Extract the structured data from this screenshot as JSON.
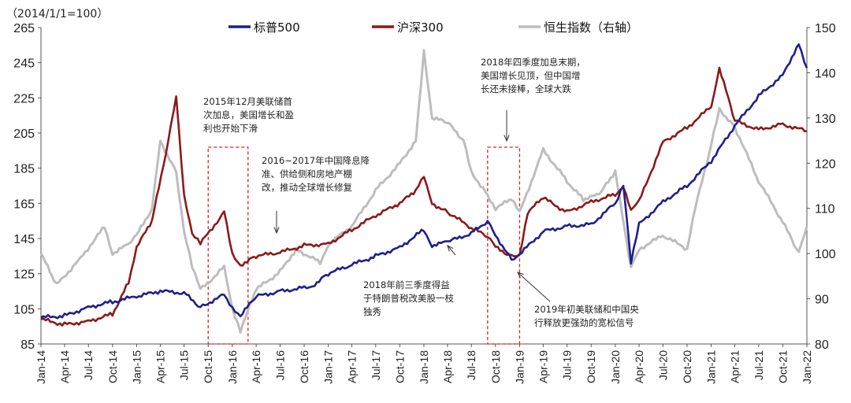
{
  "chart_data": {
    "type": "line",
    "unit_label": "（2014/1/1=100）",
    "ylim": [
      85,
      265
    ],
    "y2lim": [
      80,
      150
    ],
    "yticks": [
      "85",
      "105",
      "125",
      "145",
      "165",
      "185",
      "205",
      "225",
      "245",
      "265"
    ],
    "y2ticks": [
      "80",
      "90",
      "100",
      "110",
      "120",
      "130",
      "140",
      "150"
    ],
    "x_labels": [
      "Jan-14",
      "Apr-14",
      "Jul-14",
      "Oct-14",
      "Jan-15",
      "Apr-15",
      "Jul-15",
      "Oct-15",
      "Jan-16",
      "Apr-16",
      "Jul-16",
      "Oct-16",
      "Jan-17",
      "Apr-17",
      "Jul-17",
      "Oct-17",
      "Jan-18",
      "Apr-18",
      "Jul-18",
      "Oct-18",
      "Jan-19",
      "Apr-19",
      "Jul-19",
      "Oct-19",
      "Jan-20",
      "Apr-20",
      "Jul-20",
      "Oct-20",
      "Jan-21",
      "Apr-21",
      "Jul-21",
      "Oct-21",
      "Jan-22"
    ],
    "series": [
      {
        "name": "标普500",
        "axis": "left",
        "color": "#1f1f8c",
        "x": [
          "2014-01",
          "2014-04",
          "2014-07",
          "2014-10",
          "2015-01",
          "2015-04",
          "2015-07",
          "2015-09",
          "2015-12",
          "2016-01",
          "2016-02",
          "2016-04",
          "2016-07",
          "2016-10",
          "2016-11",
          "2017-01",
          "2017-04",
          "2017-07",
          "2017-10",
          "2018-01",
          "2018-02",
          "2018-04",
          "2018-07",
          "2018-09",
          "2018-10",
          "2018-12",
          "2019-01",
          "2019-04",
          "2019-07",
          "2019-10",
          "2020-01",
          "2020-02",
          "2020-03",
          "2020-04",
          "2020-07",
          "2020-10",
          "2021-01",
          "2021-04",
          "2021-07",
          "2021-10",
          "2021-12",
          "2022-01"
        ],
        "values": [
          100,
          101,
          106,
          109,
          112,
          115,
          114,
          106,
          113,
          106,
          101,
          112,
          115,
          117,
          118,
          125,
          130,
          135,
          140,
          150,
          141,
          143,
          148,
          155,
          147,
          133,
          136,
          149,
          152,
          153,
          165,
          176,
          131,
          153,
          166,
          175,
          189,
          209,
          226,
          238,
          256,
          242
        ]
      },
      {
        "name": "沪深300",
        "axis": "left",
        "color": "#8b1a1a",
        "x": [
          "2014-01",
          "2014-04",
          "2014-07",
          "2014-10",
          "2014-12",
          "2015-01",
          "2015-03",
          "2015-05",
          "2015-06",
          "2015-07",
          "2015-08",
          "2015-09",
          "2015-12",
          "2016-01",
          "2016-02",
          "2016-04",
          "2016-07",
          "2016-10",
          "2017-01",
          "2017-04",
          "2017-07",
          "2017-10",
          "2017-12",
          "2018-01",
          "2018-02",
          "2018-04",
          "2018-07",
          "2018-09",
          "2018-10",
          "2018-12",
          "2019-01",
          "2019-02",
          "2019-04",
          "2019-07",
          "2019-10",
          "2020-01",
          "2020-02",
          "2020-03",
          "2020-04",
          "2020-07",
          "2020-10",
          "2021-01",
          "2021-02",
          "2021-04",
          "2021-07",
          "2021-10",
          "2022-01"
        ],
        "values": [
          99,
          96,
          98,
          102,
          120,
          140,
          155,
          200,
          226,
          170,
          148,
          142,
          160,
          136,
          130,
          135,
          137,
          141,
          142,
          150,
          158,
          165,
          172,
          180,
          165,
          160,
          151,
          146,
          140,
          135,
          136,
          160,
          168,
          160,
          166,
          170,
          175,
          161,
          166,
          200,
          208,
          220,
          242,
          212,
          207,
          210,
          206
        ]
      },
      {
        "name": "恒生指数（右轴）",
        "axis": "right",
        "color": "#bdbdbd",
        "x": [
          "2014-01",
          "2014-03",
          "2014-06",
          "2014-09",
          "2014-10",
          "2014-12",
          "2015-01",
          "2015-03",
          "2015-04",
          "2015-06",
          "2015-07",
          "2015-08",
          "2015-09",
          "2015-12",
          "2016-01",
          "2016-02",
          "2016-04",
          "2016-07",
          "2016-09",
          "2016-12",
          "2017-01",
          "2017-04",
          "2017-07",
          "2017-10",
          "2017-12",
          "2018-01",
          "2018-02",
          "2018-04",
          "2018-06",
          "2018-07",
          "2018-09",
          "2018-10",
          "2018-12",
          "2019-01",
          "2019-04",
          "2019-07",
          "2019-09",
          "2019-11",
          "2020-01",
          "2020-03",
          "2020-04",
          "2020-07",
          "2020-10",
          "2020-11",
          "2021-01",
          "2021-02",
          "2021-04",
          "2021-07",
          "2021-10",
          "2021-12",
          "2022-01"
        ],
        "values": [
          100,
          93,
          99,
          106,
          100,
          102,
          104,
          110,
          125,
          118,
          105,
          97,
          92,
          97,
          88,
          83,
          92,
          96,
          101,
          98,
          102,
          106,
          114,
          120,
          125,
          145,
          130,
          129,
          125,
          118,
          113,
          110,
          112,
          109,
          123,
          116,
          112,
          113,
          118,
          97,
          101,
          104,
          101,
          110,
          124,
          132,
          128,
          116,
          107,
          100,
          106
        ]
      }
    ],
    "annotations": [
      {
        "lines": [
          "2015年12月美联储首",
          "次加息，美国增长和盈",
          "利也开始下滑"
        ]
      },
      {
        "lines": [
          "2016~2017年中国降息降",
          "准、供给侧和房地产棚",
          "改，推动全球增长修复"
        ]
      },
      {
        "lines": [
          "2018年四季度加息末期，",
          "美国增长见顶，但中国增",
          "长还未接棒，全球大跌"
        ]
      },
      {
        "lines": [
          "2018年前三季度得益",
          "于特朗普税改美股一枝",
          "独秀"
        ]
      },
      {
        "lines": [
          "2019年初美联储和中国央",
          "行释放更强劲的宽松信号"
        ]
      }
    ]
  }
}
